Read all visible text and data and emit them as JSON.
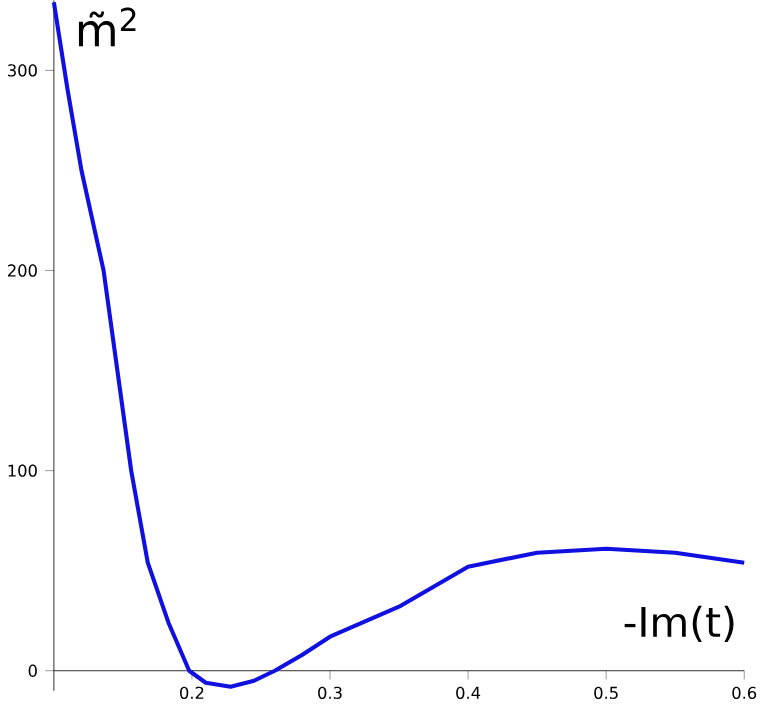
{
  "chart_data": {
    "type": "line",
    "ylabel": "m̃$^{2}$",
    "xlabel": "-Im(t)",
    "x": [
      0.1,
      0.11,
      0.12,
      0.136,
      0.156,
      0.168,
      0.183,
      0.198,
      0.21,
      0.228,
      0.245,
      0.26,
      0.28,
      0.3,
      0.35,
      0.4,
      0.45,
      0.5,
      0.55,
      0.6
    ],
    "series": [
      {
        "color": "#1010e0",
        "values": [
          334,
          290,
          250,
          200,
          100,
          54,
          24,
          0,
          -6,
          -8,
          -5,
          0,
          8,
          17,
          32,
          52,
          59,
          61,
          59,
          54
        ]
      }
    ],
    "xlim": [
      0.1,
      0.6
    ],
    "ylim": [
      -10,
      335
    ],
    "xticks": [
      0.2,
      0.3,
      0.4,
      0.5,
      0.6
    ],
    "yticks": [
      0,
      100,
      200,
      300
    ],
    "grid": false,
    "marker": "none",
    "line_style": "solid"
  }
}
